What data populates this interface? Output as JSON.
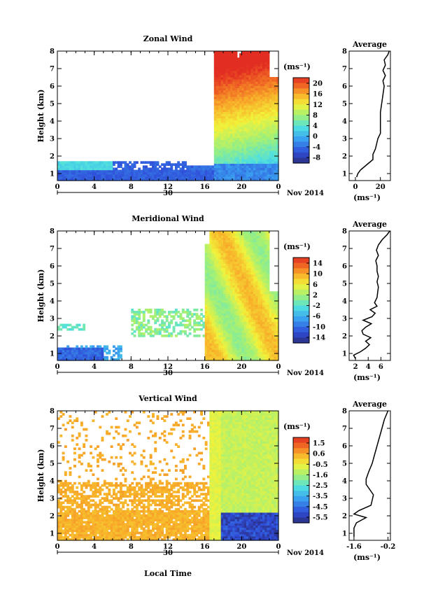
{
  "figure": {
    "xlabel": "Local Time",
    "ylabel": "Height (km)",
    "date_label": "Nov 2014",
    "day_label": "30",
    "unit_label": "(ms⁻¹)",
    "average_title": "Average"
  },
  "chart_data": [
    {
      "type": "heatmap",
      "title": "Zonal Wind",
      "xlabel": "Local Time",
      "ylabel": "Height (km)",
      "x_ticks": [
        "0",
        "4",
        "8",
        "12",
        "16",
        "20",
        "0"
      ],
      "xlim": [
        0,
        24
      ],
      "y_ticks": [
        "1",
        "2",
        "3",
        "4",
        "5",
        "6",
        "7",
        "8"
      ],
      "ylim": [
        0.6,
        8.0
      ],
      "colorbar": {
        "label": "(ms⁻¹)",
        "ticks": [
          "20",
          "16",
          "12",
          "8",
          "4",
          "0",
          "-4",
          "-8"
        ],
        "range": [
          -10,
          22
        ]
      },
      "average_profile": {
        "title": "Average",
        "x_ticks": [
          "0",
          "20"
        ],
        "xlim": [
          -5,
          28
        ],
        "xlabel": "(ms⁻¹)",
        "height": [
          0.8,
          1.0,
          1.2,
          1.5,
          1.8,
          2.1,
          2.4,
          2.7,
          3.0,
          3.3,
          3.6,
          4.0,
          4.5,
          5.0,
          5.5,
          6.0,
          6.3,
          6.6,
          6.9,
          7.2,
          7.5,
          7.8,
          8.0
        ],
        "value": [
          1,
          2,
          4,
          9,
          14,
          14,
          16,
          17,
          18,
          20,
          20,
          20,
          20,
          21,
          22,
          23,
          22,
          24,
          22,
          24,
          23,
          26,
          27
        ]
      }
    },
    {
      "type": "heatmap",
      "title": "Meridional Wind",
      "xlabel": "Local Time",
      "ylabel": "Height (km)",
      "x_ticks": [
        "0",
        "4",
        "8",
        "12",
        "16",
        "20",
        "0"
      ],
      "xlim": [
        0,
        24
      ],
      "y_ticks": [
        "1",
        "2",
        "3",
        "4",
        "5",
        "6",
        "7",
        "8"
      ],
      "ylim": [
        0.6,
        8.0
      ],
      "colorbar": {
        "label": "(ms⁻¹)",
        "ticks": [
          "14",
          "10",
          "6",
          "2",
          "-2",
          "-6",
          "-10",
          "-14"
        ],
        "range": [
          -16,
          16
        ]
      },
      "average_profile": {
        "title": "Average",
        "x_ticks": [
          "2",
          "4",
          "6"
        ],
        "xlim": [
          1,
          7.5
        ],
        "xlabel": "(ms⁻¹)",
        "height": [
          0.7,
          0.9,
          1.1,
          1.3,
          1.5,
          1.7,
          1.9,
          2.1,
          2.3,
          2.5,
          2.7,
          2.9,
          3.1,
          3.3,
          3.5,
          3.7,
          3.9,
          4.2,
          4.5,
          4.8,
          5.1,
          5.4,
          5.7,
          6.0,
          6.3,
          6.6,
          6.9,
          7.2,
          7.5,
          7.8,
          8.0
        ],
        "value": [
          2,
          1.7,
          2.8,
          3.6,
          4.2,
          3.6,
          4.4,
          3.2,
          3.0,
          3.6,
          4.5,
          3.2,
          4.6,
          5.1,
          4.3,
          5.4,
          5.0,
          5.4,
          5.5,
          5.6,
          5.4,
          5.6,
          5.4,
          5.4,
          5.2,
          5.6,
          5.3,
          5.6,
          6.2,
          7.0,
          7.4
        ]
      }
    },
    {
      "type": "heatmap",
      "title": "Vertical Wind",
      "xlabel": "Local Time",
      "ylabel": "Height (km)",
      "x_ticks": [
        "0",
        "4",
        "8",
        "12",
        "16",
        "20",
        "0"
      ],
      "xlim": [
        0,
        24
      ],
      "y_ticks": [
        "1",
        "2",
        "3",
        "4",
        "5",
        "6",
        "7",
        "8"
      ],
      "ylim": [
        0.6,
        8.0
      ],
      "colorbar": {
        "label": "(ms⁻¹)",
        "ticks": [
          "1.5",
          "0.6",
          "-0.5",
          "-1.6",
          "-2.5",
          "-3.5",
          "-4.5",
          "-5.5"
        ],
        "range": [
          -6,
          2
        ]
      },
      "average_profile": {
        "title": "Average",
        "x_ticks": [
          "-1.6",
          "-0.2"
        ],
        "xlim": [
          -1.8,
          -0.1
        ],
        "xlabel": "(ms⁻¹)",
        "height": [
          0.8,
          1.0,
          1.3,
          1.6,
          1.9,
          2.1,
          2.3,
          2.6,
          2.9,
          3.2,
          3.5,
          3.8,
          4.1,
          4.5,
          5.0,
          5.5,
          6.0,
          6.5,
          7.0,
          7.5,
          8.0
        ],
        "value": [
          -1.6,
          -1.6,
          -1.6,
          -1.5,
          -1.1,
          -1.6,
          -1.4,
          -0.9,
          -0.85,
          -0.8,
          -0.95,
          -1.1,
          -1.1,
          -1.0,
          -0.85,
          -0.75,
          -0.65,
          -0.55,
          -0.45,
          -0.35,
          -0.2
        ]
      }
    }
  ]
}
